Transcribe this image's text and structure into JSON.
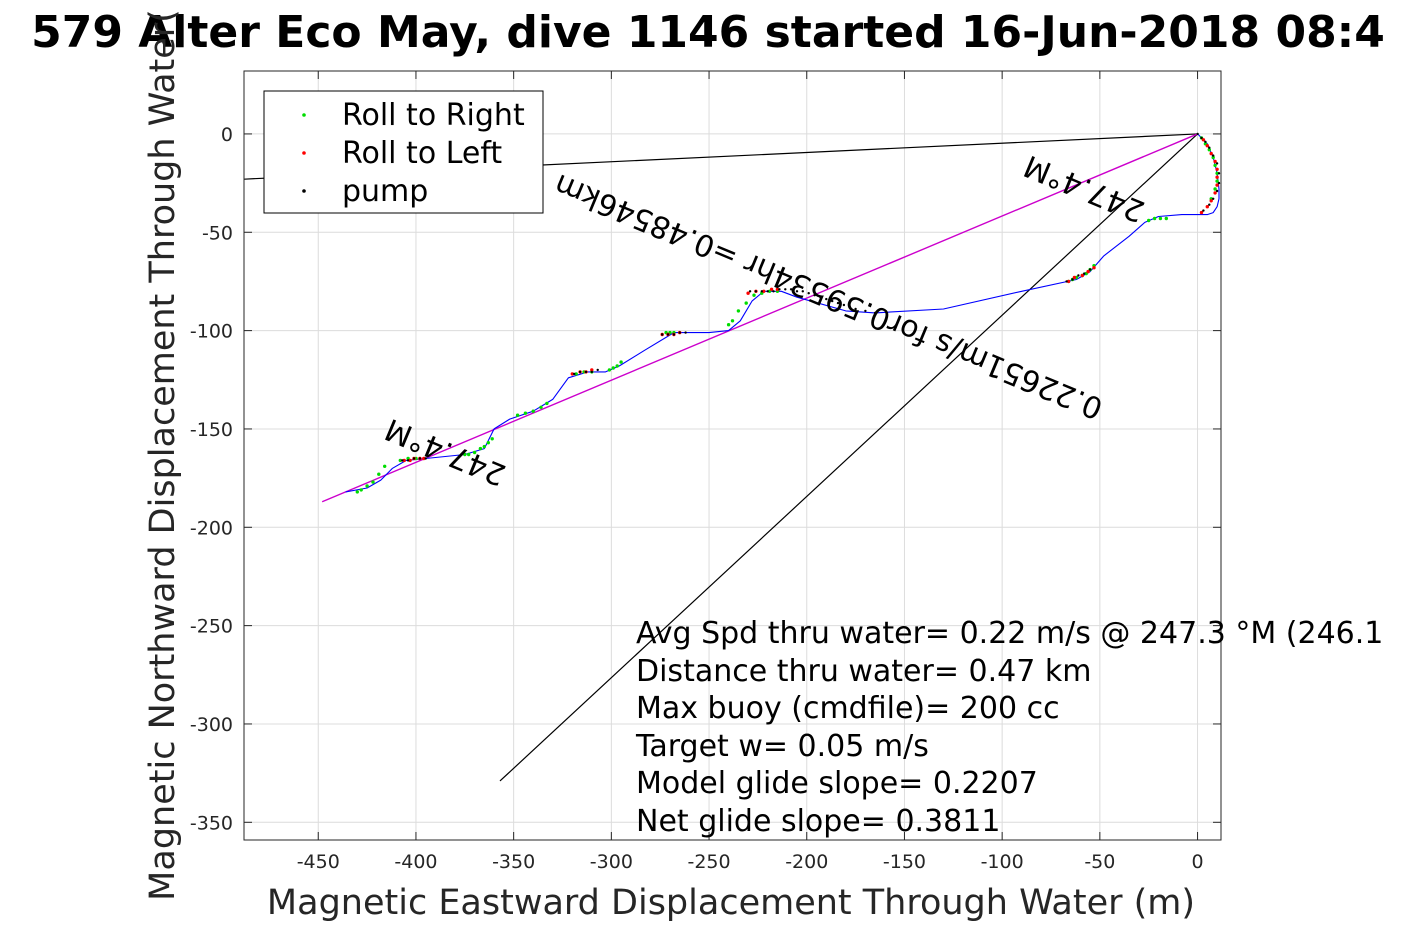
{
  "chart_data": {
    "type": "scatter",
    "title": "579 Alter Eco May, dive 1146 started 16-Jun-2018 08:4",
    "xlabel": "Magnetic Eastward Displacement Through Water (m)",
    "ylabel": "Magnetic Northward Displacement Through Water(",
    "xlim": [
      -488,
      12
    ],
    "ylim": [
      -359,
      32
    ],
    "x_ticks": [
      -450,
      -400,
      -350,
      -300,
      -250,
      -200,
      -150,
      -100,
      -50,
      0
    ],
    "x_tick_labels": [
      "-450",
      "-400",
      "-350",
      "-300",
      "-250",
      "-200",
      "-150",
      "-100",
      "-50",
      "0"
    ],
    "y_ticks": [
      0,
      -50,
      -100,
      -150,
      -200,
      -250,
      -300,
      -350
    ],
    "y_tick_labels": [
      "0",
      "-50",
      "-100",
      "-150",
      "-200",
      "-250",
      "-300",
      "-350"
    ],
    "grid": true,
    "legend_position": "top-left",
    "legend": [
      {
        "label": "Roll to Right",
        "color": "#00dd00"
      },
      {
        "label": "Roll to Left",
        "color": "#ff0000"
      },
      {
        "label": "pump",
        "color": "#000000"
      }
    ],
    "colors": {
      "track": "#0000ff",
      "heading_line": "#cc00cc",
      "reference_line": "#000000"
    },
    "track": {
      "x": [
        0,
        5,
        8,
        10,
        11,
        11,
        10,
        8,
        5,
        0,
        -8,
        -20,
        -27,
        -35,
        -48,
        -55,
        -62,
        -90,
        -130,
        -165,
        -180,
        -205,
        -213,
        -222,
        -228,
        -234,
        -240,
        -250,
        -268,
        -283,
        -296,
        -303,
        -312,
        -322,
        -330,
        -340,
        -352,
        -360,
        -365,
        -375,
        -395,
        -405,
        -412,
        -418,
        -425,
        -436
      ],
      "y": [
        0,
        -5,
        -12,
        -20,
        -28,
        -33,
        -37,
        -40,
        -41,
        -41,
        -41,
        -42,
        -45,
        -52,
        -62,
        -70,
        -74,
        -80,
        -89,
        -91,
        -90,
        -83,
        -80,
        -80,
        -85,
        -95,
        -100,
        -101,
        -101,
        -110,
        -118,
        -121,
        -121,
        -124,
        -135,
        -141,
        -145,
        -150,
        -160,
        -163,
        -165,
        -166,
        -170,
        -176,
        -180,
        -182
      ]
    },
    "heading_line": {
      "x": [
        0,
        -448
      ],
      "y": [
        0,
        -187
      ]
    },
    "reference_lines": [
      {
        "x": [
          0,
          -488
        ],
        "y": [
          0,
          -23
        ]
      },
      {
        "x": [
          0,
          -357
        ],
        "y": [
          0,
          -329
        ]
      }
    ],
    "roll_right_points": {
      "x": [
        2,
        4,
        6,
        8,
        9,
        10,
        10,
        9,
        7,
        -16,
        -19,
        -22,
        -25,
        -53,
        -55,
        -57,
        -59,
        -62,
        -64,
        -66,
        -215,
        -219,
        -223,
        -227,
        -231,
        -235,
        -238,
        -240,
        -268,
        -270,
        -272,
        -295,
        -297,
        -299,
        -301,
        -310,
        -314,
        -318,
        -333,
        -336,
        -340,
        -344,
        -348,
        -361,
        -363,
        -365,
        -367,
        -370,
        -373,
        -375,
        -400,
        -404,
        -408,
        -416,
        -419,
        -422,
        -425,
        -428,
        -430
      ],
      "y": [
        -2,
        -5,
        -8,
        -12,
        -16,
        -20,
        -24,
        -28,
        -33,
        -43,
        -43,
        -43,
        -44,
        -67,
        -69,
        -71,
        -72,
        -73,
        -74,
        -75,
        -80,
        -80,
        -81,
        -82,
        -86,
        -90,
        -95,
        -97,
        -101,
        -101,
        -101,
        -116,
        -118,
        -119,
        -120,
        -121,
        -121,
        -122,
        -137,
        -139,
        -141,
        -142,
        -143,
        -155,
        -157,
        -159,
        -160,
        -162,
        -163,
        -163,
        -165,
        -165,
        -166,
        -169,
        -173,
        -177,
        -179,
        -181,
        -182
      ]
    },
    "roll_left_points": {
      "x": [
        3,
        5,
        7,
        9,
        10,
        10,
        10,
        9,
        7,
        5,
        2,
        -53,
        -56,
        -59,
        -63,
        -66,
        -215,
        -218,
        -222,
        -226,
        -230,
        -265,
        -268,
        -271,
        -274,
        -310,
        -313,
        -316,
        -320,
        -396,
        -398,
        -401,
        -403,
        -406
      ],
      "y": [
        -3,
        -6,
        -10,
        -14,
        -18,
        -22,
        -26,
        -30,
        -34,
        -37,
        -40,
        -68,
        -70,
        -72,
        -73,
        -75,
        -79,
        -79,
        -80,
        -80,
        -81,
        -101,
        -102,
        -102,
        -102,
        -120,
        -121,
        -121,
        -122,
        -165,
        -165,
        -165,
        -166,
        -166
      ]
    },
    "pump_points": {
      "x": [
        0,
        2,
        4,
        6,
        8,
        10,
        11,
        11,
        10,
        8,
        6,
        3,
        -55,
        -58,
        -61,
        -64,
        -67,
        -165,
        -170,
        -175,
        -178,
        -181,
        -184,
        -187,
        -190,
        -193,
        -196,
        -199,
        -202,
        -205,
        -208,
        -211,
        -214,
        -217,
        -220,
        -223,
        -226,
        -229,
        -262,
        -265,
        -268,
        -271,
        -274,
        -307,
        -310,
        -313,
        -316,
        -319,
        -395,
        -398,
        -401,
        -404,
        -407
      ],
      "y": [
        0,
        -2,
        -4,
        -7,
        -11,
        -15,
        -20,
        -25,
        -29,
        -33,
        -36,
        -39,
        -69,
        -71,
        -72,
        -74,
        -75,
        -91,
        -90,
        -89,
        -88,
        -87,
        -86,
        -85,
        -84,
        -83,
        -82,
        -81,
        -80,
        -80,
        -79,
        -79,
        -79,
        -80,
        -80,
        -80,
        -80,
        -80,
        -101,
        -101,
        -102,
        -102,
        -102,
        -120,
        -121,
        -121,
        -121,
        -122,
        -165,
        -165,
        -165,
        -166,
        -166
      ]
    },
    "annotations": [
      {
        "text": "247.4°M",
        "x": -383,
        "y": -157,
        "rotation": 202.6
      },
      {
        "text": "247.4°M",
        "x": -56,
        "y": -23,
        "rotation": 202.6
      },
      {
        "text": "0.22651m/s for0.59534hr =0.48546km",
        "x": -187,
        "y": -78,
        "rotation": 202.6
      }
    ],
    "stats": [
      "Avg Spd thru water=  0.22 m/s @ 247.3 °M (246.1",
      "Distance thru water=  0.47 km",
      "Max buoy (cmdfile)= 200 cc",
      "Target w= 0.05 m/s",
      "Model glide slope= 0.2207",
      "Net glide slope= 0.3811"
    ]
  }
}
